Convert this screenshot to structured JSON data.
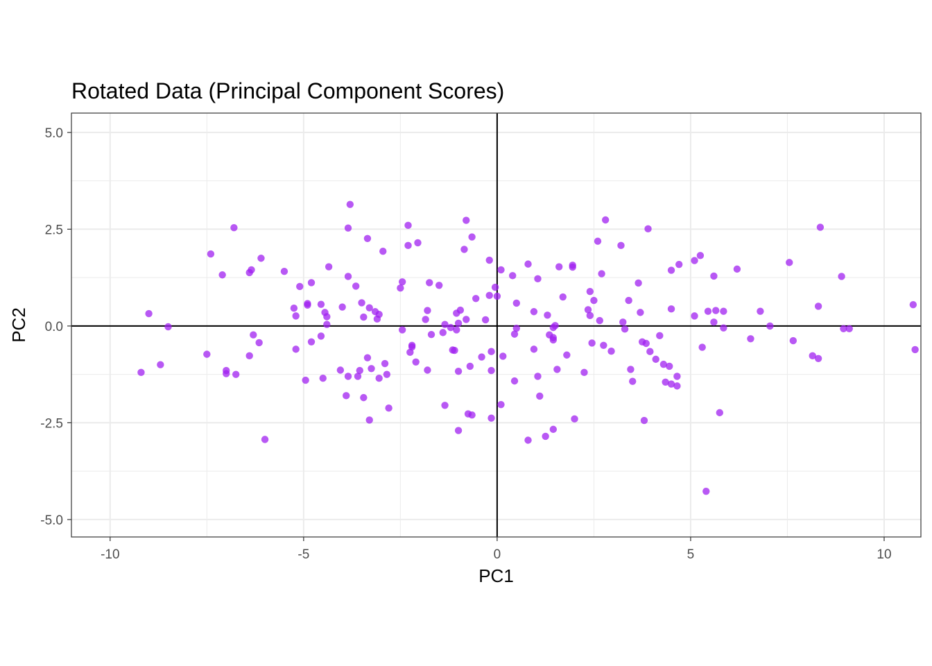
{
  "chart_data": {
    "type": "scatter",
    "title": "Rotated Data (Principal Component Scores)",
    "xlabel": "PC1",
    "ylabel": "PC2",
    "xlim": [
      -11.0,
      10.95
    ],
    "ylim": [
      -5.45,
      5.5
    ],
    "x_ticks": [
      -10,
      -5,
      0,
      5,
      10
    ],
    "x_tick_labels": [
      "-10",
      "-5",
      "0",
      "5",
      "10"
    ],
    "y_ticks": [
      -5,
      -2.5,
      0,
      2.5,
      5
    ],
    "y_tick_labels": [
      "-5.0",
      "-2.5",
      "0.0",
      "2.5",
      "5.0"
    ],
    "grid": true,
    "reference_lines": {
      "x": 0,
      "y": 0
    },
    "point_color": "#A020F0",
    "reference_line_color": "#000000",
    "grid_color": "#EBEBEB",
    "panel_border_color": "#333333",
    "points": [
      [
        -9.2,
        -1.2
      ],
      [
        -9.0,
        0.32
      ],
      [
        -8.7,
        -1.0
      ],
      [
        -8.5,
        -0.02
      ],
      [
        -7.5,
        -0.73
      ],
      [
        -7.4,
        1.86
      ],
      [
        -7.1,
        1.32
      ],
      [
        -7.0,
        -1.15
      ],
      [
        -7.0,
        -1.23
      ],
      [
        -6.8,
        2.54
      ],
      [
        -6.75,
        -1.25
      ],
      [
        -6.4,
        1.38
      ],
      [
        -6.35,
        1.45
      ],
      [
        -6.4,
        -0.77
      ],
      [
        -6.3,
        -0.23
      ],
      [
        -6.15,
        -0.43
      ],
      [
        -6.1,
        1.75
      ],
      [
        -6.0,
        -2.93
      ],
      [
        -5.5,
        1.41
      ],
      [
        -5.25,
        0.46
      ],
      [
        -5.2,
        0.26
      ],
      [
        -5.2,
        -0.6
      ],
      [
        -5.1,
        1.02
      ],
      [
        -4.95,
        -1.4
      ],
      [
        -4.9,
        0.54
      ],
      [
        -4.9,
        0.58
      ],
      [
        -4.8,
        -0.41
      ],
      [
        -4.8,
        1.12
      ],
      [
        -4.55,
        0.56
      ],
      [
        -4.55,
        -0.26
      ],
      [
        -4.5,
        -1.35
      ],
      [
        -4.45,
        0.35
      ],
      [
        -4.4,
        0.24
      ],
      [
        -4.4,
        0.04
      ],
      [
        -4.35,
        1.53
      ],
      [
        -4.05,
        -1.14
      ],
      [
        -4.0,
        0.49
      ],
      [
        -3.9,
        -1.8
      ],
      [
        -3.85,
        1.28
      ],
      [
        -3.85,
        2.53
      ],
      [
        -3.8,
        3.14
      ],
      [
        -3.85,
        -1.3
      ],
      [
        -3.65,
        1.03
      ],
      [
        -3.6,
        -1.3
      ],
      [
        -3.55,
        -1.15
      ],
      [
        -3.5,
        0.6
      ],
      [
        -3.45,
        0.23
      ],
      [
        -3.45,
        -1.85
      ],
      [
        -3.35,
        2.26
      ],
      [
        -3.35,
        -0.82
      ],
      [
        -3.3,
        0.47
      ],
      [
        -3.3,
        -2.43
      ],
      [
        -3.25,
        -1.1
      ],
      [
        -3.15,
        0.37
      ],
      [
        -3.1,
        0.18
      ],
      [
        -3.05,
        0.3
      ],
      [
        -3.05,
        -1.35
      ],
      [
        -2.95,
        1.93
      ],
      [
        -2.9,
        -0.97
      ],
      [
        -2.85,
        -1.25
      ],
      [
        -2.8,
        -2.12
      ],
      [
        -2.5,
        0.98
      ],
      [
        -2.45,
        -0.1
      ],
      [
        -2.45,
        1.14
      ],
      [
        -2.3,
        2.6
      ],
      [
        -2.3,
        2.08
      ],
      [
        -2.25,
        -0.68
      ],
      [
        -2.2,
        -0.5
      ],
      [
        -2.2,
        -0.54
      ],
      [
        -2.1,
        -0.93
      ],
      [
        -2.05,
        2.15
      ],
      [
        -1.85,
        0.17
      ],
      [
        -1.8,
        0.4
      ],
      [
        -1.8,
        -1.14
      ],
      [
        -1.75,
        1.12
      ],
      [
        -1.7,
        -0.22
      ],
      [
        -1.5,
        1.05
      ],
      [
        -1.4,
        -0.17
      ],
      [
        -1.35,
        0.04
      ],
      [
        -1.35,
        -2.05
      ],
      [
        -1.2,
        -0.04
      ],
      [
        -1.15,
        -0.62
      ],
      [
        -1.1,
        -0.63
      ],
      [
        -1.05,
        0.33
      ],
      [
        -1.05,
        -0.1
      ],
      [
        -1.0,
        -1.17
      ],
      [
        -1.0,
        -2.7
      ],
      [
        -1.0,
        0.07
      ],
      [
        -0.95,
        0.41
      ],
      [
        -0.85,
        1.98
      ],
      [
        -0.8,
        2.73
      ],
      [
        -0.8,
        0.17
      ],
      [
        -0.75,
        -2.27
      ],
      [
        -0.7,
        -1.04
      ],
      [
        -0.65,
        2.3
      ],
      [
        -0.65,
        -2.3
      ],
      [
        -0.55,
        0.71
      ],
      [
        -0.4,
        -0.8
      ],
      [
        -0.3,
        0.16
      ],
      [
        -0.2,
        0.79
      ],
      [
        -0.2,
        1.7
      ],
      [
        -0.15,
        -1.15
      ],
      [
        -0.15,
        -0.66
      ],
      [
        -0.15,
        -2.38
      ],
      [
        -0.05,
        1.0
      ],
      [
        0.0,
        0.77
      ],
      [
        0.1,
        1.45
      ],
      [
        0.1,
        -2.03
      ],
      [
        0.15,
        -0.78
      ],
      [
        0.4,
        1.3
      ],
      [
        0.45,
        -1.42
      ],
      [
        0.45,
        -0.21
      ],
      [
        0.5,
        -0.06
      ],
      [
        0.5,
        0.59
      ],
      [
        0.8,
        -2.95
      ],
      [
        0.8,
        1.6
      ],
      [
        0.95,
        0.37
      ],
      [
        0.95,
        -0.6
      ],
      [
        1.05,
        1.22
      ],
      [
        1.05,
        -1.3
      ],
      [
        1.1,
        -1.81
      ],
      [
        1.25,
        -2.85
      ],
      [
        1.3,
        0.28
      ],
      [
        1.35,
        -0.23
      ],
      [
        1.45,
        -0.3
      ],
      [
        1.45,
        -0.04
      ],
      [
        1.45,
        -0.36
      ],
      [
        1.45,
        -2.67
      ],
      [
        1.5,
        0.01
      ],
      [
        1.55,
        -1.12
      ],
      [
        1.6,
        1.53
      ],
      [
        1.7,
        0.75
      ],
      [
        1.8,
        -0.75
      ],
      [
        1.95,
        1.52
      ],
      [
        1.95,
        1.57
      ],
      [
        2.0,
        -2.4
      ],
      [
        2.25,
        -1.2
      ],
      [
        2.35,
        0.42
      ],
      [
        2.4,
        0.27
      ],
      [
        2.4,
        0.89
      ],
      [
        2.45,
        -0.44
      ],
      [
        2.5,
        0.66
      ],
      [
        2.6,
        2.19
      ],
      [
        2.65,
        0.14
      ],
      [
        2.7,
        1.35
      ],
      [
        2.75,
        -0.5
      ],
      [
        2.8,
        2.74
      ],
      [
        2.95,
        -0.65
      ],
      [
        3.2,
        2.08
      ],
      [
        3.25,
        0.1
      ],
      [
        3.3,
        -0.08
      ],
      [
        3.4,
        0.66
      ],
      [
        3.45,
        -1.12
      ],
      [
        3.5,
        -1.43
      ],
      [
        3.65,
        1.11
      ],
      [
        3.7,
        0.35
      ],
      [
        3.75,
        -0.41
      ],
      [
        3.8,
        -2.44
      ],
      [
        3.85,
        -0.45
      ],
      [
        3.9,
        2.51
      ],
      [
        3.95,
        -0.66
      ],
      [
        4.1,
        -0.86
      ],
      [
        4.2,
        -0.25
      ],
      [
        4.3,
        -0.99
      ],
      [
        4.35,
        -1.45
      ],
      [
        4.45,
        -1.04
      ],
      [
        4.5,
        1.44
      ],
      [
        4.5,
        0.44
      ],
      [
        4.5,
        -1.5
      ],
      [
        4.65,
        -1.3
      ],
      [
        4.65,
        -1.55
      ],
      [
        4.7,
        1.59
      ],
      [
        5.1,
        1.69
      ],
      [
        5.1,
        0.26
      ],
      [
        5.25,
        1.82
      ],
      [
        5.3,
        -0.55
      ],
      [
        5.4,
        -4.27
      ],
      [
        5.45,
        0.38
      ],
      [
        5.6,
        1.29
      ],
      [
        5.6,
        0.1
      ],
      [
        5.65,
        0.4
      ],
      [
        5.75,
        -2.24
      ],
      [
        5.85,
        -0.05
      ],
      [
        5.85,
        0.38
      ],
      [
        6.2,
        1.47
      ],
      [
        6.55,
        -0.33
      ],
      [
        6.8,
        0.38
      ],
      [
        7.05,
        0.0
      ],
      [
        7.55,
        1.64
      ],
      [
        7.65,
        -0.38
      ],
      [
        8.15,
        -0.77
      ],
      [
        8.3,
        0.51
      ],
      [
        8.3,
        -0.84
      ],
      [
        8.35,
        2.55
      ],
      [
        8.9,
        1.28
      ],
      [
        8.95,
        -0.07
      ],
      [
        9.1,
        -0.07
      ],
      [
        10.75,
        0.55
      ],
      [
        10.8,
        -0.61
      ]
    ]
  }
}
